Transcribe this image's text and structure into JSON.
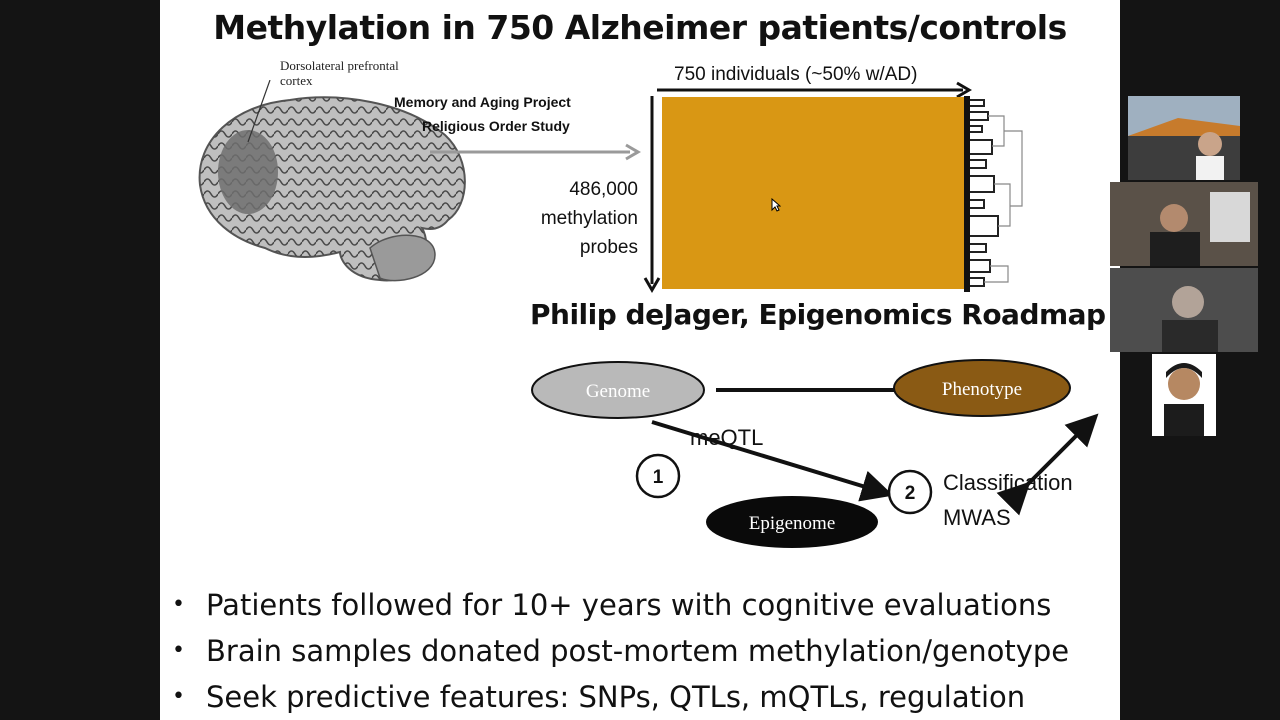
{
  "slide": {
    "title": "Methylation in 750 Alzheimer patients/controls",
    "brain_label_line1": "Dorsolateral prefrontal",
    "brain_label_line2": "cortex",
    "study_line1": "Memory and Aging Project",
    "study_line2": "Religious Order Study",
    "individuals_label": "750 individuals (~50% w/AD)",
    "probes_line1": "486,000",
    "probes_line2": "methylation",
    "probes_line3": "probes",
    "credit": "Philip deJager, Epigenomics Roadmap",
    "diagram": {
      "genome": "Genome",
      "phenotype": "Phenotype",
      "epigenome": "Epigenome",
      "meqtl": "meQTL",
      "step1": "1",
      "step2": "2",
      "classification": "Classification",
      "mwas": "MWAS"
    },
    "bullets": [
      "Patients followed for 10+ years with cognitive evaluations",
      "Brain samples donated post-mortem methylation/genotype",
      "Seek predictive features: SNPs, QTLs, mQTLs, regulation"
    ],
    "colors": {
      "matrix": "#d99714",
      "phenotype_fill": "#8a5a14",
      "genome_fill": "#b9b9b9",
      "epigenome_fill": "#0a0a0a",
      "background": "#141414"
    }
  },
  "participants": [
    {
      "name": "participant-1-video",
      "bg": "#6b6b6b"
    },
    {
      "name": "participant-2-video",
      "bg": "#4a4a4a"
    },
    {
      "name": "participant-3-video",
      "bg": "#2e2e2e"
    },
    {
      "name": "participant-4-video",
      "bg": "#ffffff"
    }
  ]
}
